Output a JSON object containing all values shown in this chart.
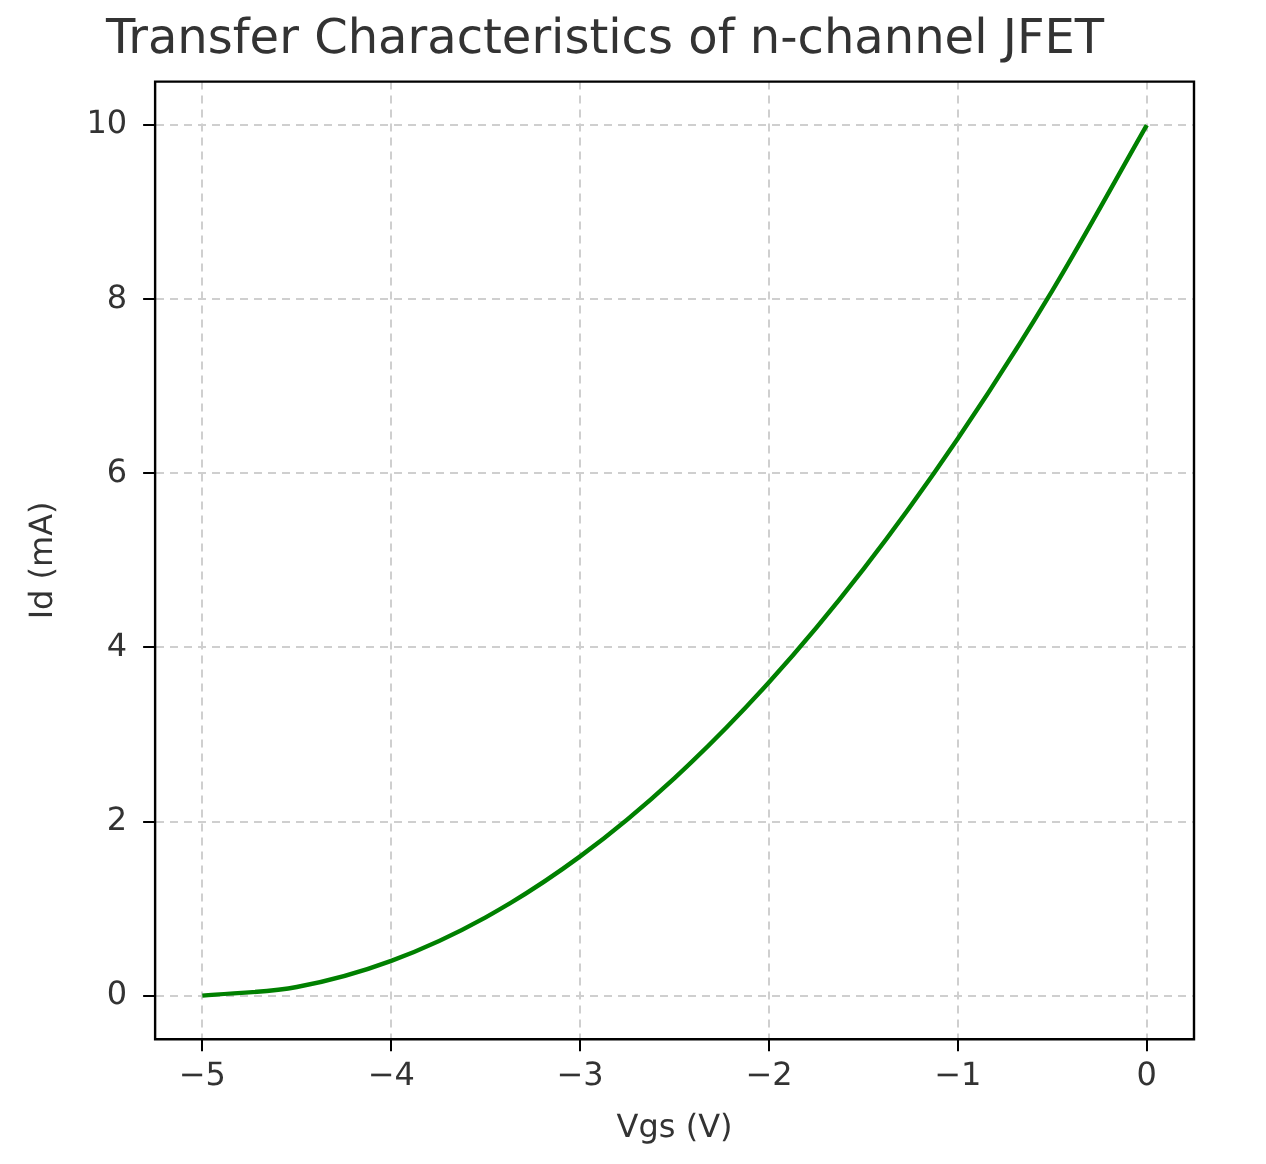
{
  "chart_data": {
    "type": "line",
    "title": "Transfer Characteristics of n-channel JFET",
    "xlabel": "Vgs (V)",
    "ylabel": "Id (mA)",
    "x": [
      -5,
      -4.5,
      -4,
      -3.5,
      -3,
      -2.5,
      -2,
      -1.5,
      -1,
      -0.5,
      0
    ],
    "series": [
      {
        "color": "#008000",
        "values": [
          0,
          0.1,
          0.4,
          0.9,
          1.6,
          2.5,
          3.6,
          4.9,
          6.4,
          8.1,
          10
        ]
      }
    ],
    "xlim": [
      -5.25,
      0.25
    ],
    "ylim": [
      -0.5,
      10.5
    ],
    "xticks": [
      {
        "value": -5,
        "label": "−5"
      },
      {
        "value": -4,
        "label": "−4"
      },
      {
        "value": -3,
        "label": "−3"
      },
      {
        "value": -2,
        "label": "−2"
      },
      {
        "value": -1,
        "label": "−1"
      },
      0
    ],
    "yticks": [
      0,
      2,
      4,
      6,
      8,
      10
    ],
    "grid": true,
    "marker": "none",
    "line_style": "solid",
    "legend": false
  }
}
